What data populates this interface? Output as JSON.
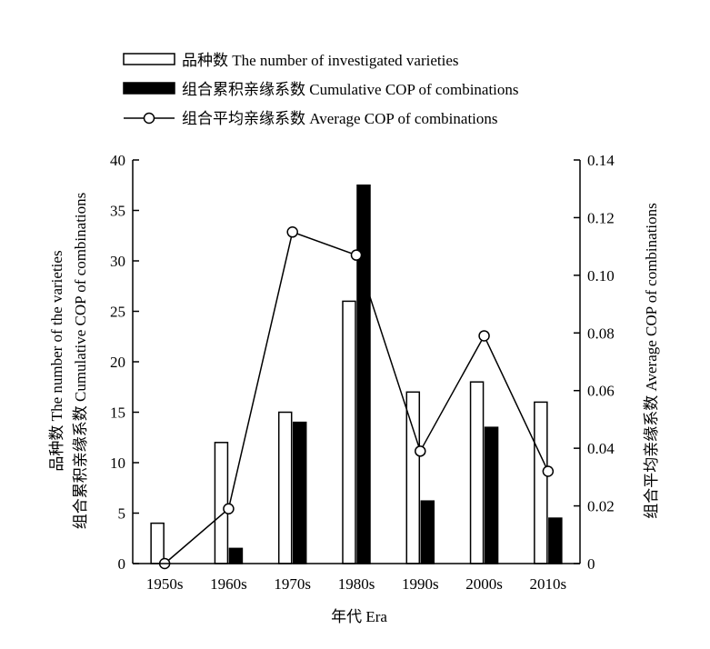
{
  "chart_data": {
    "type": "bar",
    "categories": [
      "1950s",
      "1960s",
      "1970s",
      "1980s",
      "1990s",
      "2000s",
      "2010s"
    ],
    "series": [
      {
        "name": "品种数 The number of investigated varieties",
        "type": "bar",
        "axis": "left",
        "fill": "#ffffff",
        "values": [
          4,
          12,
          15,
          26,
          17,
          18,
          16
        ]
      },
      {
        "name": "组合累积亲缘系数 Cumulative COP of combinations",
        "type": "bar",
        "axis": "left",
        "fill": "#000000",
        "values": [
          0,
          1.5,
          14,
          37.5,
          6.2,
          13.5,
          4.5
        ]
      },
      {
        "name": "组合平均亲缘系数 Average COP of combinations",
        "type": "line",
        "axis": "right",
        "marker": "open-circle",
        "values": [
          0,
          0.019,
          0.115,
          0.107,
          0.039,
          0.079,
          0.032
        ]
      }
    ],
    "xlabel": "年代 Era",
    "ylabel_left_line1": "品种数 The number of the varieties",
    "ylabel_left_line2": "组合累积亲缘系数 Cumulative COP of combinations",
    "ylabel_right": "组合平均亲缘系数 Average COP of combinations",
    "ylim_left": [
      0,
      40
    ],
    "yticks_left": [
      "0",
      "5",
      "10",
      "15",
      "20",
      "25",
      "30",
      "35",
      "40"
    ],
    "ylim_right": [
      0,
      0.14
    ],
    "yticks_right": [
      "0",
      "0.02",
      "0.04",
      "0.06",
      "0.08",
      "0.10",
      "0.12",
      "0.14"
    ],
    "grid": false,
    "legend_position": "top-center"
  }
}
